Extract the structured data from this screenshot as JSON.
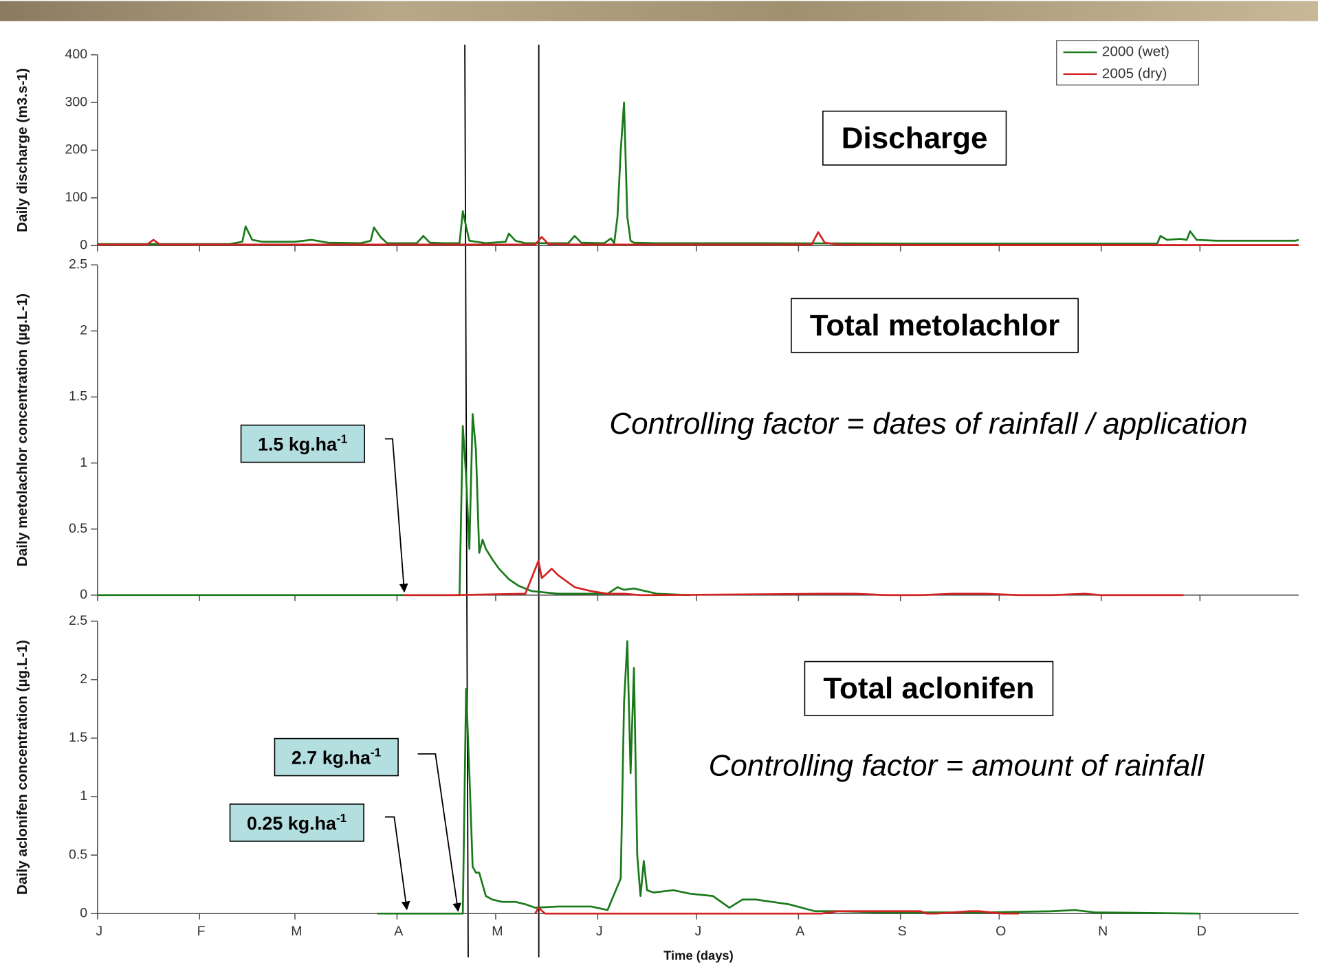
{
  "chart_data": [
    {
      "type": "line",
      "title": "Discharge",
      "ylabel": "Daily discharge (m3.s-1)",
      "xlim": [
        0,
        365
      ],
      "ylim": [
        0,
        400
      ],
      "yticks": [
        0,
        100,
        200,
        300,
        400
      ],
      "legend": "upper right",
      "series": [
        {
          "name": "2000 (wet)",
          "color": "#1a7a1a",
          "x": [
            0,
            40,
            44,
            45,
            47,
            50,
            60,
            65,
            70,
            80,
            83,
            84,
            86,
            88,
            97,
            99,
            101,
            105,
            110,
            111,
            112,
            113,
            115,
            118,
            120,
            124,
            125,
            127,
            130,
            135,
            143,
            145,
            147,
            154,
            156,
            157,
            158,
            159,
            160,
            161,
            162,
            163,
            170,
            200,
            250,
            300,
            322,
            323,
            325,
            329,
            331,
            332,
            334,
            340,
            364,
            365
          ],
          "values": [
            3,
            3,
            8,
            40,
            12,
            8,
            8,
            12,
            6,
            5,
            10,
            38,
            18,
            5,
            5,
            20,
            6,
            5,
            5,
            72,
            40,
            10,
            8,
            5,
            6,
            8,
            25,
            10,
            5,
            5,
            5,
            20,
            6,
            5,
            15,
            5,
            60,
            200,
            300,
            60,
            10,
            6,
            5,
            5,
            4,
            4,
            4,
            20,
            12,
            14,
            12,
            30,
            12,
            10,
            10,
            12
          ]
        },
        {
          "name": "2005 (dry)",
          "color": "#d42020",
          "x": [
            0,
            15,
            17,
            19,
            30,
            100,
            133,
            135,
            137,
            145,
            217,
            219,
            221,
            225,
            260,
            365
          ],
          "values": [
            2,
            2,
            12,
            2,
            2,
            2,
            2,
            18,
            3,
            2,
            2,
            28,
            6,
            2,
            1,
            1
          ]
        }
      ]
    },
    {
      "type": "line",
      "title": "Total metolachlor",
      "ylabel": "Daily metolachlor concentration (µg.L-1)",
      "annotations": [
        "Controlling factor = dates of rainfall / application"
      ],
      "dose_labels": [
        {
          "text": "1.5 kg.ha",
          "sup": "-1"
        }
      ],
      "xlim": [
        0,
        365
      ],
      "ylim": [
        0,
        2.5
      ],
      "yticks": [
        0,
        0.5,
        1,
        1.5,
        2,
        2.5
      ],
      "series": [
        {
          "color": "#1a7a1a",
          "x": [
            0,
            110,
            111,
            112,
            113,
            114,
            115,
            116,
            117,
            118,
            120,
            122,
            125,
            128,
            132,
            140,
            155,
            158,
            160,
            163,
            170,
            180
          ],
          "values": [
            0,
            0,
            1.28,
            0.9,
            0.35,
            1.37,
            1.1,
            0.32,
            0.42,
            0.35,
            0.27,
            0.2,
            0.12,
            0.07,
            0.03,
            0.01,
            0.01,
            0.06,
            0.04,
            0.05,
            0.01,
            0
          ]
        },
        {
          "color": "#d42020",
          "x": [
            93,
            108,
            130,
            134,
            135,
            136,
            138,
            140,
            145,
            150,
            155,
            160,
            165,
            170,
            220,
            230,
            240,
            250,
            260,
            270,
            280,
            290,
            300,
            305,
            330
          ],
          "values": [
            0,
            0,
            0.01,
            0.26,
            0.13,
            0.15,
            0.2,
            0.15,
            0.06,
            0.03,
            0.01,
            0.01,
            0,
            0,
            0.01,
            0.01,
            0,
            0,
            0.01,
            0.01,
            0,
            0,
            0.01,
            0,
            0
          ]
        }
      ]
    },
    {
      "type": "line",
      "title": "Total aclonifen",
      "ylabel": "Daily aclonifen concentration (µg.L-1)",
      "xlabel": "Time (days)",
      "annotations": [
        "Controlling factor = amount of rainfall"
      ],
      "dose_labels": [
        {
          "text": "2.7 kg.ha",
          "sup": "-1"
        },
        {
          "text": "0.25 kg.ha",
          "sup": "-1"
        }
      ],
      "xlim": [
        0,
        365
      ],
      "ylim": [
        0,
        2.5
      ],
      "yticks": [
        0,
        0.5,
        1,
        1.5,
        2,
        2.5
      ],
      "xticks": [
        {
          "value": 0,
          "label": "J"
        },
        {
          "value": 31,
          "label": "F"
        },
        {
          "value": 60,
          "label": "M"
        },
        {
          "value": 91,
          "label": "A"
        },
        {
          "value": 121,
          "label": "M"
        },
        {
          "value": 152,
          "label": "J"
        },
        {
          "value": 182,
          "label": "J"
        },
        {
          "value": 213,
          "label": "A"
        },
        {
          "value": 244,
          "label": "S"
        },
        {
          "value": 274,
          "label": "O"
        },
        {
          "value": 305,
          "label": "N"
        },
        {
          "value": 335,
          "label": "D"
        }
      ],
      "series": [
        {
          "color": "#1a7a1a",
          "x": [
            85,
            111,
            112,
            113,
            114,
            115,
            116,
            118,
            120,
            123,
            127,
            130,
            133,
            140,
            150,
            155,
            159,
            160,
            161,
            162,
            163,
            164,
            165,
            166,
            167,
            169,
            175,
            180,
            187,
            192,
            196,
            200,
            210,
            218,
            225,
            240,
            270,
            290,
            297,
            303,
            335
          ],
          "values": [
            0,
            0,
            1.92,
            1.2,
            0.4,
            0.35,
            0.35,
            0.15,
            0.12,
            0.1,
            0.1,
            0.08,
            0.05,
            0.06,
            0.06,
            0.03,
            0.3,
            1.8,
            2.33,
            1.2,
            2.1,
            0.5,
            0.15,
            0.45,
            0.2,
            0.18,
            0.2,
            0.17,
            0.15,
            0.05,
            0.12,
            0.12,
            0.08,
            0.02,
            0.02,
            0.01,
            0.01,
            0.02,
            0.03,
            0.01,
            0
          ]
        },
        {
          "color": "#d42020",
          "x": [
            133,
            134,
            136,
            140,
            160,
            220,
            225,
            250,
            252,
            255,
            265,
            268,
            275,
            280
          ],
          "values": [
            0,
            0.05,
            0,
            0,
            0,
            0,
            0.02,
            0.02,
            0,
            0,
            0.02,
            0.02,
            0,
            0
          ]
        }
      ]
    }
  ]
}
